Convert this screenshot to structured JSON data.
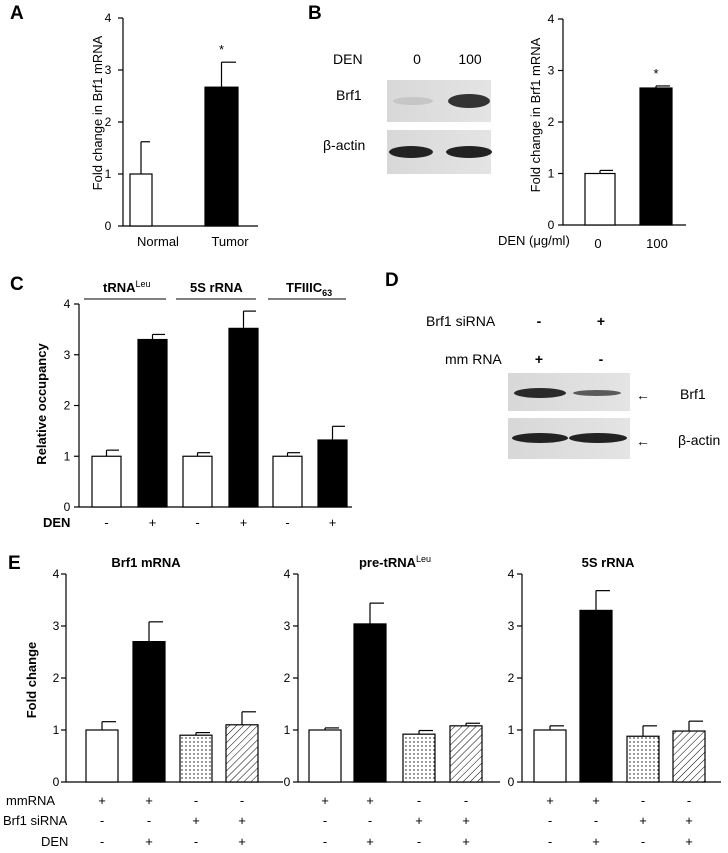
{
  "panel_letters": [
    "A",
    "B",
    "C",
    "D",
    "E"
  ],
  "chart_data": [
    {
      "id": "A",
      "type": "bar",
      "ylabel": "Fold change in Brf1 mRNA",
      "ylim": [
        0,
        4
      ],
      "yticks": [
        "0",
        "1",
        "2",
        "3",
        "4"
      ],
      "categories": [
        "Normal",
        "Tumor"
      ],
      "values": [
        1.0,
        2.67
      ],
      "errors": [
        0.62,
        0.48
      ],
      "fills": [
        "white",
        "black"
      ],
      "annotations": [
        "",
        "*"
      ]
    },
    {
      "id": "B",
      "type": "bar",
      "ylabel": "Fold change in Brf1 mRNA",
      "ylim": [
        0,
        4
      ],
      "yticks": [
        "0",
        "1",
        "2",
        "3",
        "4"
      ],
      "xlabel": "DEN (μg/ml)",
      "categories": [
        "0",
        "100"
      ],
      "values": [
        1.0,
        2.66
      ],
      "errors": [
        0.06,
        0.04
      ],
      "fills": [
        "white",
        "black"
      ],
      "annotations": [
        "",
        "*"
      ]
    },
    {
      "id": "C",
      "type": "bar",
      "ylabel": "Relative occupancy",
      "ylim": [
        0,
        4
      ],
      "yticks": [
        "0",
        "1",
        "2",
        "3",
        "4"
      ],
      "groups": [
        {
          "label": "tRNA",
          "sup": "Leu",
          "sub": ""
        },
        {
          "label": "5S rRNA",
          "sup": "",
          "sub": ""
        },
        {
          "label": "TFIIIC",
          "sup": "",
          "sub": "63"
        }
      ],
      "values": [
        1.0,
        3.3,
        1.0,
        3.52,
        1.0,
        1.32
      ],
      "errors": [
        0.12,
        0.1,
        0.07,
        0.34,
        0.07,
        0.27
      ],
      "fills": [
        "white",
        "black",
        "white",
        "black",
        "white",
        "black"
      ],
      "conditions": [
        {
          "name": "DEN",
          "signs": [
            "-",
            "+",
            "-",
            "+",
            "-",
            "+"
          ]
        }
      ]
    },
    {
      "id": "E1",
      "type": "bar",
      "title": "Brf1 mRNA",
      "title_sup": "",
      "ylabel": "Fold change",
      "ylim": [
        0,
        4
      ],
      "yticks": [
        "0",
        "1",
        "2",
        "3",
        "4"
      ],
      "values": [
        1.0,
        2.7,
        0.9,
        1.1
      ],
      "errors": [
        0.16,
        0.38,
        0.05,
        0.25
      ],
      "fills": [
        "white",
        "black",
        "dots",
        "hatch"
      ],
      "conditions": [
        {
          "name": "mmRNA",
          "signs": [
            "+",
            "+",
            "-",
            "-"
          ]
        },
        {
          "name": "Brf1 siRNA",
          "signs": [
            "-",
            "-",
            "+",
            "+"
          ]
        },
        {
          "name": "DEN",
          "signs": [
            "-",
            "+",
            "-",
            "+"
          ]
        }
      ]
    },
    {
      "id": "E2",
      "type": "bar",
      "title": "pre-tRNA",
      "title_sup": "Leu",
      "ylabel": "",
      "ylim": [
        0,
        4
      ],
      "yticks": [
        "0",
        "1",
        "2",
        "3",
        "4"
      ],
      "values": [
        1.0,
        3.04,
        0.92,
        1.08
      ],
      "errors": [
        0.04,
        0.4,
        0.07,
        0.05
      ],
      "fills": [
        "white",
        "black",
        "dots",
        "hatch"
      ],
      "conditions": [
        {
          "name": "",
          "signs": [
            "+",
            "+",
            "-",
            "-"
          ]
        },
        {
          "name": "",
          "signs": [
            "-",
            "-",
            "+",
            "+"
          ]
        },
        {
          "name": "",
          "signs": [
            "-",
            "+",
            "-",
            "+"
          ]
        }
      ]
    },
    {
      "id": "E3",
      "type": "bar",
      "title": "5S rRNA",
      "title_sup": "",
      "ylabel": "",
      "ylim": [
        0,
        4
      ],
      "yticks": [
        "0",
        "1",
        "2",
        "3",
        "4"
      ],
      "values": [
        1.0,
        3.3,
        0.88,
        0.98
      ],
      "errors": [
        0.08,
        0.38,
        0.2,
        0.19
      ],
      "fills": [
        "white",
        "black",
        "dots",
        "hatch"
      ],
      "conditions": [
        {
          "name": "",
          "signs": [
            "+",
            "+",
            "-",
            "-"
          ]
        },
        {
          "name": "",
          "signs": [
            "-",
            "-",
            "+",
            "+"
          ]
        },
        {
          "name": "",
          "signs": [
            "-",
            "+",
            "-",
            "+"
          ]
        }
      ]
    }
  ],
  "blot_B": {
    "header_label": "DEN",
    "lanes": [
      "0",
      "100"
    ],
    "rows": [
      "Brf1",
      "β-actin"
    ]
  },
  "blot_D": {
    "conditions": [
      {
        "name": "Brf1 siRNA",
        "signs": [
          "-",
          "+"
        ]
      },
      {
        "name": "mm RNA",
        "signs": [
          "+",
          "-"
        ]
      }
    ],
    "rows": [
      "Brf1",
      "β-actin"
    ],
    "arrow": "←"
  }
}
